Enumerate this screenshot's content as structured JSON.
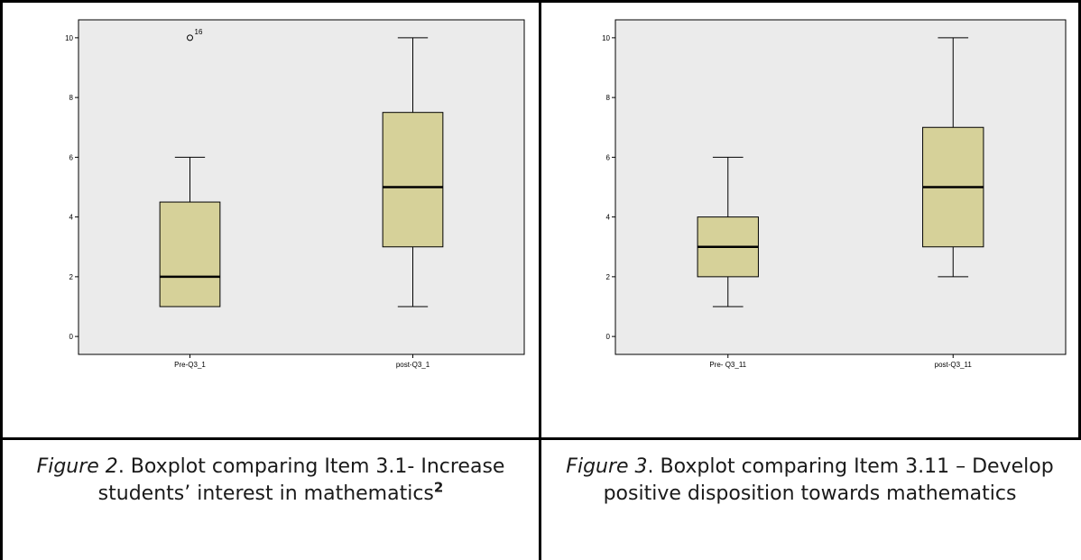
{
  "chart_data": [
    {
      "type": "boxplot",
      "ylim": [
        -0.6,
        10.6
      ],
      "yticks": [
        "0",
        "2",
        "4",
        "6",
        "8",
        "10"
      ],
      "grid": false,
      "plot_bg": "#ebebeb",
      "box_fill": "#d6d199",
      "categories": [
        "Pre-Q3_1",
        "post-Q3_1"
      ],
      "boxes": [
        {
          "label": "Pre-Q3_1",
          "min": 1,
          "q1": 1,
          "median": 2,
          "q3": 4.5,
          "max": 6,
          "outliers": [
            {
              "value": 10,
              "label": "16"
            }
          ]
        },
        {
          "label": "post-Q3_1",
          "min": 1,
          "q1": 3,
          "median": 5,
          "q3": 7.5,
          "max": 10,
          "outliers": []
        }
      ]
    },
    {
      "type": "boxplot",
      "ylim": [
        -0.6,
        10.6
      ],
      "yticks": [
        "0",
        "2",
        "4",
        "6",
        "8",
        "10"
      ],
      "grid": false,
      "plot_bg": "#ebebeb",
      "box_fill": "#d6d199",
      "categories": [
        "Pre- Q3_11",
        "post-Q3_11"
      ],
      "boxes": [
        {
          "label": "Pre- Q3_11",
          "min": 1,
          "q1": 2,
          "median": 3,
          "q3": 4,
          "max": 6,
          "outliers": []
        },
        {
          "label": "post-Q3_11",
          "min": 2,
          "q1": 3,
          "median": 5,
          "q3": 7,
          "max": 10,
          "outliers": []
        }
      ]
    }
  ],
  "captions": [
    {
      "fig": "Figure 2",
      "text1": ". Boxplot comparing Item 3.1- Increase",
      "text2": "students’ interest in mathematics",
      "footnote": "2"
    },
    {
      "fig": "Figure 3",
      "text1": ". Boxplot comparing Item 3.11 – Develop",
      "text2": "positive disposition towards mathematics",
      "footnote": ""
    }
  ]
}
